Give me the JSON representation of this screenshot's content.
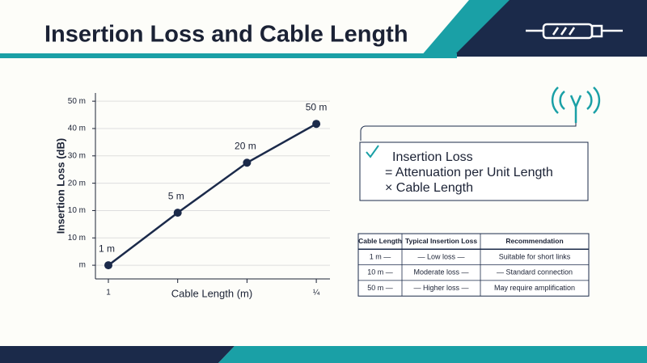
{
  "header": {
    "title": "Insertion Loss and Cable Length"
  },
  "chart_data": {
    "type": "line",
    "y_axis_label": "Insertion Loss (dB)",
    "x_axis_label": "Cable Length (m)",
    "categories": [
      "1 m",
      "5 m",
      "20 m",
      "50 m"
    ],
    "xtick_labels": [
      "1",
      null,
      null,
      "¼"
    ],
    "values": [
      0,
      19.2,
      37.5,
      51.7
    ],
    "color": "#1b2a4a",
    "ylim": [
      -5,
      63
    ],
    "yticks": [
      {
        "value": 0,
        "label": "m"
      },
      {
        "value": 10,
        "label": "10 m"
      },
      {
        "value": 20,
        "label": "10 m"
      },
      {
        "value": 30,
        "label": "20 m"
      },
      {
        "value": 40,
        "label": "30 m"
      },
      {
        "value": 50,
        "label": "40 m"
      },
      {
        "value": 60,
        "label": "50 m"
      }
    ],
    "grid": true
  },
  "formula": {
    "lines": [
      "Insertion Loss",
      "= Attenuation per Unit Length",
      "× Cable Length"
    ]
  },
  "table": {
    "columns": [
      "Cable Length",
      "Typical Insertion Loss",
      "Recommendation"
    ],
    "rows": [
      [
        "1 m —",
        "— Low loss —",
        "Suitable for short links"
      ],
      [
        "10 m —",
        "Moderate loss —",
        "— Standard connection"
      ],
      [
        "50 m —",
        "— Higher loss —",
        "May require amplification"
      ]
    ]
  }
}
